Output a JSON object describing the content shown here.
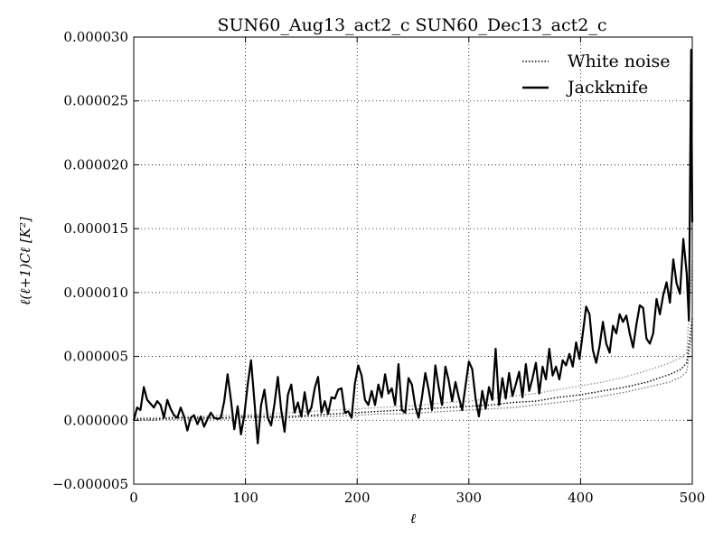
{
  "chart_data": {
    "type": "line",
    "title": "SUN60_Aug13_act2_c SUN60_Dec13_act2_c",
    "xlabel": "ℓ",
    "ylabel": "ℓ(ℓ+1)Cℓ [K²]",
    "xlim": [
      0,
      500
    ],
    "ylim": [
      -5e-06,
      3e-05
    ],
    "x_ticks": [
      0,
      100,
      200,
      300,
      400,
      500
    ],
    "x_tick_labels": [
      "0",
      "100",
      "200",
      "300",
      "400",
      "500"
    ],
    "y_ticks": [
      -5e-06,
      0,
      5e-06,
      1e-05,
      1.5e-05,
      2e-05,
      2.5e-05,
      3e-05
    ],
    "y_tick_labels": [
      "−0.000005",
      "0.000000",
      "0.000005",
      "0.000010",
      "0.000015",
      "0.000020",
      "0.000025",
      "0.000030"
    ],
    "grid": true,
    "legend": "top-right",
    "series": [
      {
        "name": "White noise",
        "style": "dotted",
        "color": "#000000",
        "points": [
          [
            0,
            1e-07
          ],
          [
            20,
            1e-07
          ],
          [
            40,
            2e-07
          ],
          [
            60,
            2e-07
          ],
          [
            80,
            2e-07
          ],
          [
            100,
            3e-07
          ],
          [
            120,
            3e-07
          ],
          [
            140,
            3e-07
          ],
          [
            160,
            4e-07
          ],
          [
            180,
            5e-07
          ],
          [
            200,
            6e-07
          ],
          [
            220,
            7e-07
          ],
          [
            240,
            8e-07
          ],
          [
            260,
            9e-07
          ],
          [
            280,
            1e-06
          ],
          [
            300,
            1.1e-06
          ],
          [
            320,
            1.2e-06
          ],
          [
            340,
            1.4e-06
          ],
          [
            360,
            1.5e-06
          ],
          [
            380,
            1.8e-06
          ],
          [
            400,
            2e-06
          ],
          [
            420,
            2.3e-06
          ],
          [
            440,
            2.6e-06
          ],
          [
            460,
            3e-06
          ],
          [
            480,
            3.6e-06
          ],
          [
            490,
            4e-06
          ],
          [
            495,
            4.5e-06
          ],
          [
            500,
            8e-06
          ]
        ]
      },
      {
        "name": "",
        "style": "dotted",
        "color": "#777777",
        "points": [
          [
            0,
            0
          ],
          [
            20,
            0
          ],
          [
            40,
            1e-07
          ],
          [
            60,
            1e-07
          ],
          [
            80,
            1e-07
          ],
          [
            100,
            2e-07
          ],
          [
            120,
            2e-07
          ],
          [
            140,
            2e-07
          ],
          [
            160,
            3e-07
          ],
          [
            180,
            3e-07
          ],
          [
            200,
            4e-07
          ],
          [
            220,
            5e-07
          ],
          [
            240,
            5e-07
          ],
          [
            260,
            6e-07
          ],
          [
            280,
            7e-07
          ],
          [
            300,
            8e-07
          ],
          [
            320,
            9e-07
          ],
          [
            340,
            1e-06
          ],
          [
            360,
            1.2e-06
          ],
          [
            380,
            1.4e-06
          ],
          [
            400,
            1.6e-06
          ],
          [
            420,
            1.9e-06
          ],
          [
            440,
            2.2e-06
          ],
          [
            460,
            2.6e-06
          ],
          [
            480,
            3e-06
          ],
          [
            490,
            3.4e-06
          ],
          [
            495,
            3.8e-06
          ],
          [
            500,
            7e-06
          ]
        ]
      },
      {
        "name": "",
        "style": "dotted",
        "color": "#999999",
        "points": [
          [
            0,
            2e-07
          ],
          [
            20,
            2e-07
          ],
          [
            40,
            3e-07
          ],
          [
            60,
            3e-07
          ],
          [
            80,
            4e-07
          ],
          [
            100,
            4e-07
          ],
          [
            120,
            5e-07
          ],
          [
            140,
            6e-07
          ],
          [
            160,
            7e-07
          ],
          [
            180,
            8e-07
          ],
          [
            200,
            9e-07
          ],
          [
            220,
            1e-06
          ],
          [
            240,
            1.1e-06
          ],
          [
            260,
            1.2e-06
          ],
          [
            280,
            1.4e-06
          ],
          [
            300,
            1.5e-06
          ],
          [
            320,
            1.7e-06
          ],
          [
            340,
            1.9e-06
          ],
          [
            360,
            2.1e-06
          ],
          [
            380,
            2.4e-06
          ],
          [
            400,
            2.7e-06
          ],
          [
            420,
            3e-06
          ],
          [
            440,
            3.4e-06
          ],
          [
            460,
            3.9e-06
          ],
          [
            480,
            4.5e-06
          ],
          [
            490,
            4.9e-06
          ],
          [
            495,
            5.3e-06
          ],
          [
            500,
            1.25e-05
          ]
        ]
      },
      {
        "name": "Jackknife",
        "style": "solid",
        "color": "#000000",
        "points": [
          [
            0,
            0
          ],
          [
            3,
            1e-06
          ],
          [
            6,
            8e-07
          ],
          [
            9,
            2.6e-06
          ],
          [
            12,
            1.6e-06
          ],
          [
            15,
            1.3e-06
          ],
          [
            18,
            1e-06
          ],
          [
            21,
            1.5e-06
          ],
          [
            24,
            1.2e-06
          ],
          [
            27,
            2e-07
          ],
          [
            30,
            1.6e-06
          ],
          [
            33,
            9e-07
          ],
          [
            36,
            4e-07
          ],
          [
            39,
            2e-07
          ],
          [
            42,
            1e-06
          ],
          [
            45,
            3e-07
          ],
          [
            48,
            -8e-07
          ],
          [
            51,
            2e-07
          ],
          [
            54,
            4e-07
          ],
          [
            57,
            -3e-07
          ],
          [
            60,
            3e-07
          ],
          [
            63,
            -5e-07
          ],
          [
            66,
            1e-07
          ],
          [
            69,
            6e-07
          ],
          [
            72,
            2e-07
          ],
          [
            75,
            1e-07
          ],
          [
            78,
            2e-07
          ],
          [
            81,
            1.5e-06
          ],
          [
            84,
            3.6e-06
          ],
          [
            87,
            1.6e-06
          ],
          [
            90,
            -7e-07
          ],
          [
            93,
            1.1e-06
          ],
          [
            96,
            -1.1e-06
          ],
          [
            99,
            4e-07
          ],
          [
            102,
            2.8e-06
          ],
          [
            105,
            4.7e-06
          ],
          [
            108,
            1.5e-06
          ],
          [
            111,
            -1.8e-06
          ],
          [
            114,
            1.2e-06
          ],
          [
            117,
            2.4e-06
          ],
          [
            120,
            2e-07
          ],
          [
            123,
            -4e-07
          ],
          [
            126,
            1.3e-06
          ],
          [
            129,
            3.4e-06
          ],
          [
            132,
            8e-07
          ],
          [
            135,
            -9e-07
          ],
          [
            138,
            2e-06
          ],
          [
            141,
            2.8e-06
          ],
          [
            144,
            6e-07
          ],
          [
            147,
            1.4e-06
          ],
          [
            150,
            3e-07
          ],
          [
            153,
            2.2e-06
          ],
          [
            156,
            5e-07
          ],
          [
            159,
            1e-06
          ],
          [
            162,
            2.5e-06
          ],
          [
            165,
            3.4e-06
          ],
          [
            168,
            6e-07
          ],
          [
            171,
            1.5e-06
          ],
          [
            174,
            5e-07
          ],
          [
            177,
            1.8e-06
          ],
          [
            180,
            1.7e-06
          ],
          [
            183,
            2.4e-06
          ],
          [
            186,
            2.5e-06
          ],
          [
            189,
            6e-07
          ],
          [
            192,
            7e-07
          ],
          [
            195,
            2e-07
          ],
          [
            198,
            2.9e-06
          ],
          [
            201,
            4.3e-06
          ],
          [
            204,
            3.5e-06
          ],
          [
            207,
            1.6e-06
          ],
          [
            210,
            1.2e-06
          ],
          [
            213,
            2.3e-06
          ],
          [
            216,
            1.2e-06
          ],
          [
            219,
            2.8e-06
          ],
          [
            222,
            1.8e-06
          ],
          [
            225,
            3.6e-06
          ],
          [
            228,
            2.1e-06
          ],
          [
            231,
            2.5e-06
          ],
          [
            234,
            1.2e-06
          ],
          [
            237,
            4.4e-06
          ],
          [
            240,
            8e-07
          ],
          [
            243,
            6e-07
          ],
          [
            246,
            3.3e-06
          ],
          [
            249,
            2.8e-06
          ],
          [
            252,
            1.1e-06
          ],
          [
            255,
            2e-07
          ],
          [
            258,
            1.8e-06
          ],
          [
            261,
            3.7e-06
          ],
          [
            264,
            2.4e-06
          ],
          [
            267,
            8e-07
          ],
          [
            270,
            4.3e-06
          ],
          [
            273,
            2.6e-06
          ],
          [
            276,
            1.2e-06
          ],
          [
            279,
            4.2e-06
          ],
          [
            282,
            3.1e-06
          ],
          [
            285,
            1.5e-06
          ],
          [
            288,
            3e-06
          ],
          [
            291,
            1.8e-06
          ],
          [
            294,
            8e-07
          ],
          [
            297,
            2.7e-06
          ],
          [
            300,
            4.6e-06
          ],
          [
            303,
            4e-06
          ],
          [
            306,
            1.7e-06
          ],
          [
            309,
            3e-07
          ],
          [
            312,
            2.3e-06
          ],
          [
            315,
            9e-07
          ],
          [
            318,
            2.6e-06
          ],
          [
            321,
            1.6e-06
          ],
          [
            324,
            5.6e-06
          ],
          [
            327,
            1.2e-06
          ],
          [
            330,
            3.3e-06
          ],
          [
            333,
            1.7e-06
          ],
          [
            336,
            3.7e-06
          ],
          [
            339,
            1.9e-06
          ],
          [
            342,
            2.8e-06
          ],
          [
            345,
            3.8e-06
          ],
          [
            348,
            1.8e-06
          ],
          [
            351,
            4.4e-06
          ],
          [
            354,
            2.3e-06
          ],
          [
            357,
            3.3e-06
          ],
          [
            360,
            4.5e-06
          ],
          [
            363,
            2.1e-06
          ],
          [
            366,
            4.2e-06
          ],
          [
            369,
            3.2e-06
          ],
          [
            372,
            5.6e-06
          ],
          [
            375,
            3.5e-06
          ],
          [
            378,
            4.2e-06
          ],
          [
            381,
            3.2e-06
          ],
          [
            384,
            4.7e-06
          ],
          [
            387,
            4.3e-06
          ],
          [
            390,
            5.2e-06
          ],
          [
            393,
            4.2e-06
          ],
          [
            396,
            6.1e-06
          ],
          [
            399,
            4.8e-06
          ],
          [
            402,
            6.8e-06
          ],
          [
            405,
            8.9e-06
          ],
          [
            408,
            8.3e-06
          ],
          [
            411,
            5.5e-06
          ],
          [
            414,
            4.5e-06
          ],
          [
            417,
            5.8e-06
          ],
          [
            420,
            7.7e-06
          ],
          [
            423,
            6e-06
          ],
          [
            426,
            5.3e-06
          ],
          [
            429,
            7.4e-06
          ],
          [
            432,
            6.8e-06
          ],
          [
            435,
            8.3e-06
          ],
          [
            438,
            7.7e-06
          ],
          [
            441,
            8.2e-06
          ],
          [
            444,
            6.8e-06
          ],
          [
            447,
            5.7e-06
          ],
          [
            450,
            7.5e-06
          ],
          [
            453,
            9e-06
          ],
          [
            456,
            8.8e-06
          ],
          [
            459,
            6.4e-06
          ],
          [
            462,
            6e-06
          ],
          [
            465,
            6.8e-06
          ],
          [
            468,
            9.5e-06
          ],
          [
            471,
            8.3e-06
          ],
          [
            474,
            9.8e-06
          ],
          [
            477,
            1.08e-05
          ],
          [
            480,
            9.2e-06
          ],
          [
            483,
            1.26e-05
          ],
          [
            486,
            1.07e-05
          ],
          [
            489,
            9.9e-06
          ],
          [
            492,
            1.42e-05
          ],
          [
            495,
            1.15e-05
          ],
          [
            497,
            7.8e-06
          ],
          [
            499,
            2.9e-05
          ],
          [
            500,
            1.55e-05
          ]
        ]
      }
    ]
  }
}
